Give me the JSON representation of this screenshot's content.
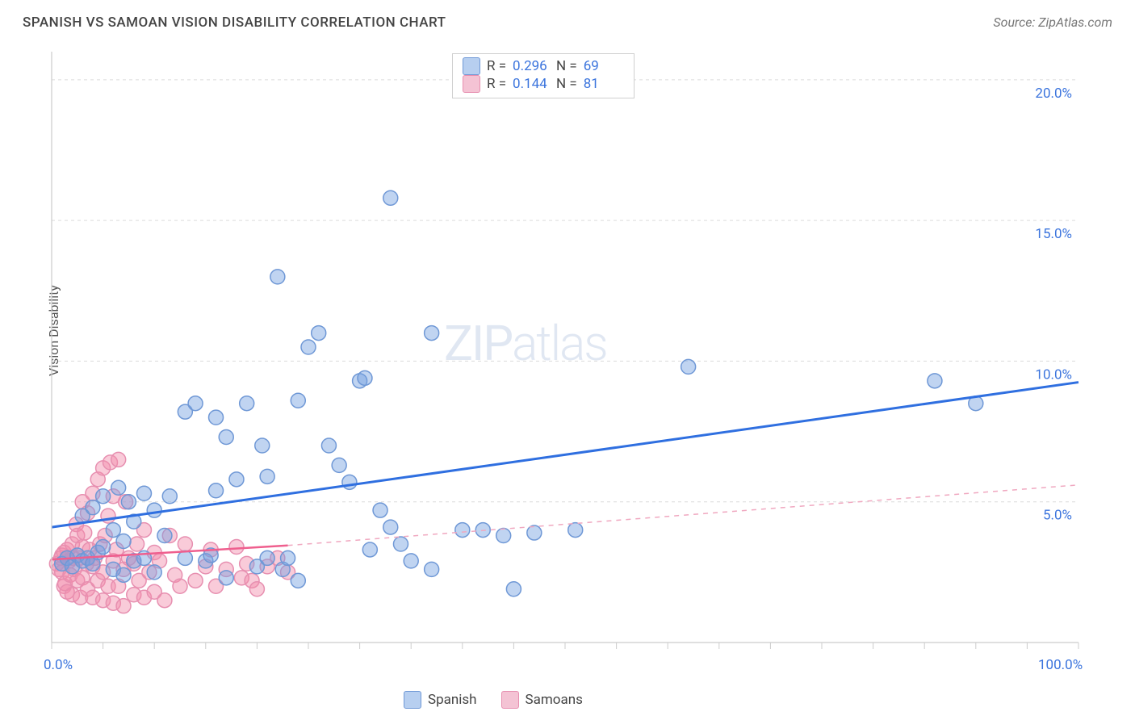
{
  "header": {
    "title": "SPANISH VS SAMOAN VISION DISABILITY CORRELATION CHART",
    "source": "Source: ZipAtlas.com"
  },
  "chart": {
    "type": "scatter",
    "ylabel": "Vision Disability",
    "xlim": [
      0,
      100
    ],
    "ylim": [
      0,
      21
    ],
    "xtick_interval": 5,
    "xtick_labels": {
      "0": "0.0%",
      "100": "100.0%"
    },
    "ytick_values": [
      5,
      10,
      15,
      20
    ],
    "ytick_labels": [
      "5.0%",
      "10.0%",
      "15.0%",
      "20.0%"
    ],
    "grid_color": "#dcdcdc",
    "axis_color": "#cccccc",
    "background_color": "#ffffff",
    "axis_label_color": "#3b74dd",
    "axis_label_fontsize": 17,
    "marker_radius": 9,
    "watermark": "ZIPatlas",
    "series": {
      "spanish": {
        "label": "Spanish",
        "color_fill": "rgba(115,160,224,0.45)",
        "color_stroke": "#6f98d6",
        "swatch_fill": "#b7cff0",
        "swatch_stroke": "#6f98d6",
        "trend_color": "#2f6fe0",
        "trend_width": 3,
        "trend_dash": "",
        "trend": {
          "x1": 0,
          "y1": 4.1,
          "x2": 100,
          "y2": 9.25
        },
        "R": "0.296",
        "N": "69",
        "points": [
          [
            1,
            2.8
          ],
          [
            1.5,
            3.0
          ],
          [
            2,
            2.7
          ],
          [
            2.5,
            3.1
          ],
          [
            3,
            2.9
          ],
          [
            3,
            4.5
          ],
          [
            3.5,
            3.0
          ],
          [
            4,
            2.8
          ],
          [
            4,
            4.8
          ],
          [
            4.5,
            3.2
          ],
          [
            5,
            3.4
          ],
          [
            5,
            5.2
          ],
          [
            6,
            2.6
          ],
          [
            6,
            4.0
          ],
          [
            6.5,
            5.5
          ],
          [
            7,
            3.6
          ],
          [
            7,
            2.4
          ],
          [
            7.5,
            5.0
          ],
          [
            8,
            4.3
          ],
          [
            8,
            2.9
          ],
          [
            9,
            3.0
          ],
          [
            9,
            5.3
          ],
          [
            10,
            4.7
          ],
          [
            10,
            2.5
          ],
          [
            11,
            3.8
          ],
          [
            11.5,
            5.2
          ],
          [
            13,
            3.0
          ],
          [
            13,
            8.2
          ],
          [
            14,
            8.5
          ],
          [
            15,
            2.9
          ],
          [
            15.5,
            3.1
          ],
          [
            16,
            5.4
          ],
          [
            16,
            8.0
          ],
          [
            17,
            7.3
          ],
          [
            17,
            2.3
          ],
          [
            18,
            5.8
          ],
          [
            19,
            8.5
          ],
          [
            20,
            2.7
          ],
          [
            20.5,
            7.0
          ],
          [
            21,
            3.0
          ],
          [
            21,
            5.9
          ],
          [
            22,
            13.0
          ],
          [
            22.5,
            2.6
          ],
          [
            23,
            3.0
          ],
          [
            24,
            2.2
          ],
          [
            24,
            8.6
          ],
          [
            25,
            10.5
          ],
          [
            26,
            11.0
          ],
          [
            27,
            7.0
          ],
          [
            28,
            6.3
          ],
          [
            29,
            5.7
          ],
          [
            30,
            9.3
          ],
          [
            30.5,
            9.4
          ],
          [
            31,
            3.3
          ],
          [
            32,
            4.7
          ],
          [
            33,
            4.1
          ],
          [
            33,
            15.8
          ],
          [
            34,
            3.5
          ],
          [
            35,
            2.9
          ],
          [
            37,
            2.6
          ],
          [
            37,
            11.0
          ],
          [
            40,
            4.0
          ],
          [
            42,
            4.0
          ],
          [
            44,
            3.8
          ],
          [
            45,
            1.9
          ],
          [
            47,
            3.9
          ],
          [
            51,
            4.0
          ],
          [
            62,
            9.8
          ],
          [
            86,
            9.3
          ],
          [
            90,
            8.5
          ]
        ]
      },
      "samoans": {
        "label": "Samoans",
        "color_fill": "rgba(242,140,170,0.45)",
        "color_stroke": "#e78fb0",
        "swatch_fill": "#f4c3d4",
        "swatch_stroke": "#e78fb0",
        "trend_color": "#ef5f8e",
        "trend_width": 2.5,
        "trend_dash": "",
        "trend_dash_ext": "6,6",
        "trend_extend_color": "#f0a8c0",
        "trend_solid": {
          "x1": 0,
          "y1": 2.95,
          "x2": 23,
          "y2": 3.45
        },
        "trend_ext": {
          "x1": 23,
          "y1": 3.45,
          "x2": 100,
          "y2": 5.6
        },
        "R": "0.144",
        "N": "81",
        "points": [
          [
            0.5,
            2.8
          ],
          [
            0.7,
            2.6
          ],
          [
            0.9,
            3.0
          ],
          [
            1,
            3.1
          ],
          [
            1,
            2.5
          ],
          [
            1.2,
            3.2
          ],
          [
            1.2,
            2.0
          ],
          [
            1.3,
            2.1
          ],
          [
            1.5,
            3.3
          ],
          [
            1.5,
            1.8
          ],
          [
            1.7,
            2.9
          ],
          [
            1.8,
            2.4
          ],
          [
            2,
            3.5
          ],
          [
            2,
            1.7
          ],
          [
            2,
            3.0
          ],
          [
            2.2,
            2.6
          ],
          [
            2.4,
            4.2
          ],
          [
            2.5,
            2.2
          ],
          [
            2.5,
            3.8
          ],
          [
            2.7,
            3.0
          ],
          [
            2.8,
            1.6
          ],
          [
            3,
            3.4
          ],
          [
            3,
            2.3
          ],
          [
            3,
            5.0
          ],
          [
            3.2,
            3.9
          ],
          [
            3.4,
            2.8
          ],
          [
            3.5,
            4.6
          ],
          [
            3.5,
            1.9
          ],
          [
            3.7,
            3.3
          ],
          [
            4,
            5.3
          ],
          [
            4,
            2.7
          ],
          [
            4,
            1.6
          ],
          [
            4.2,
            3.0
          ],
          [
            4.5,
            5.8
          ],
          [
            4.5,
            2.2
          ],
          [
            4.7,
            3.5
          ],
          [
            5,
            6.2
          ],
          [
            5,
            2.5
          ],
          [
            5,
            1.5
          ],
          [
            5.2,
            3.8
          ],
          [
            5.5,
            2.0
          ],
          [
            5.5,
            4.5
          ],
          [
            5.7,
            6.4
          ],
          [
            6,
            2.9
          ],
          [
            6,
            5.2
          ],
          [
            6,
            1.4
          ],
          [
            6.3,
            3.3
          ],
          [
            6.5,
            2.0
          ],
          [
            6.5,
            6.5
          ],
          [
            7,
            2.6
          ],
          [
            7,
            1.3
          ],
          [
            7.2,
            5.0
          ],
          [
            7.5,
            3.0
          ],
          [
            8,
            2.8
          ],
          [
            8,
            1.7
          ],
          [
            8.3,
            3.5
          ],
          [
            8.5,
            2.2
          ],
          [
            9,
            1.6
          ],
          [
            9,
            4.0
          ],
          [
            9.5,
            2.5
          ],
          [
            10,
            3.2
          ],
          [
            10,
            1.8
          ],
          [
            10.5,
            2.9
          ],
          [
            11,
            1.5
          ],
          [
            11.5,
            3.8
          ],
          [
            12,
            2.4
          ],
          [
            12.5,
            2.0
          ],
          [
            13,
            3.5
          ],
          [
            14,
            2.2
          ],
          [
            15,
            2.7
          ],
          [
            15.5,
            3.3
          ],
          [
            16,
            2.0
          ],
          [
            17,
            2.6
          ],
          [
            18,
            3.4
          ],
          [
            18.5,
            2.3
          ],
          [
            19,
            2.8
          ],
          [
            19.5,
            2.2
          ],
          [
            20,
            1.9
          ],
          [
            21,
            2.7
          ],
          [
            22,
            3.0
          ],
          [
            23,
            2.5
          ]
        ]
      }
    },
    "legend_top_order": [
      "spanish",
      "samoans"
    ],
    "legend_bottom_order": [
      "spanish",
      "samoans"
    ]
  }
}
